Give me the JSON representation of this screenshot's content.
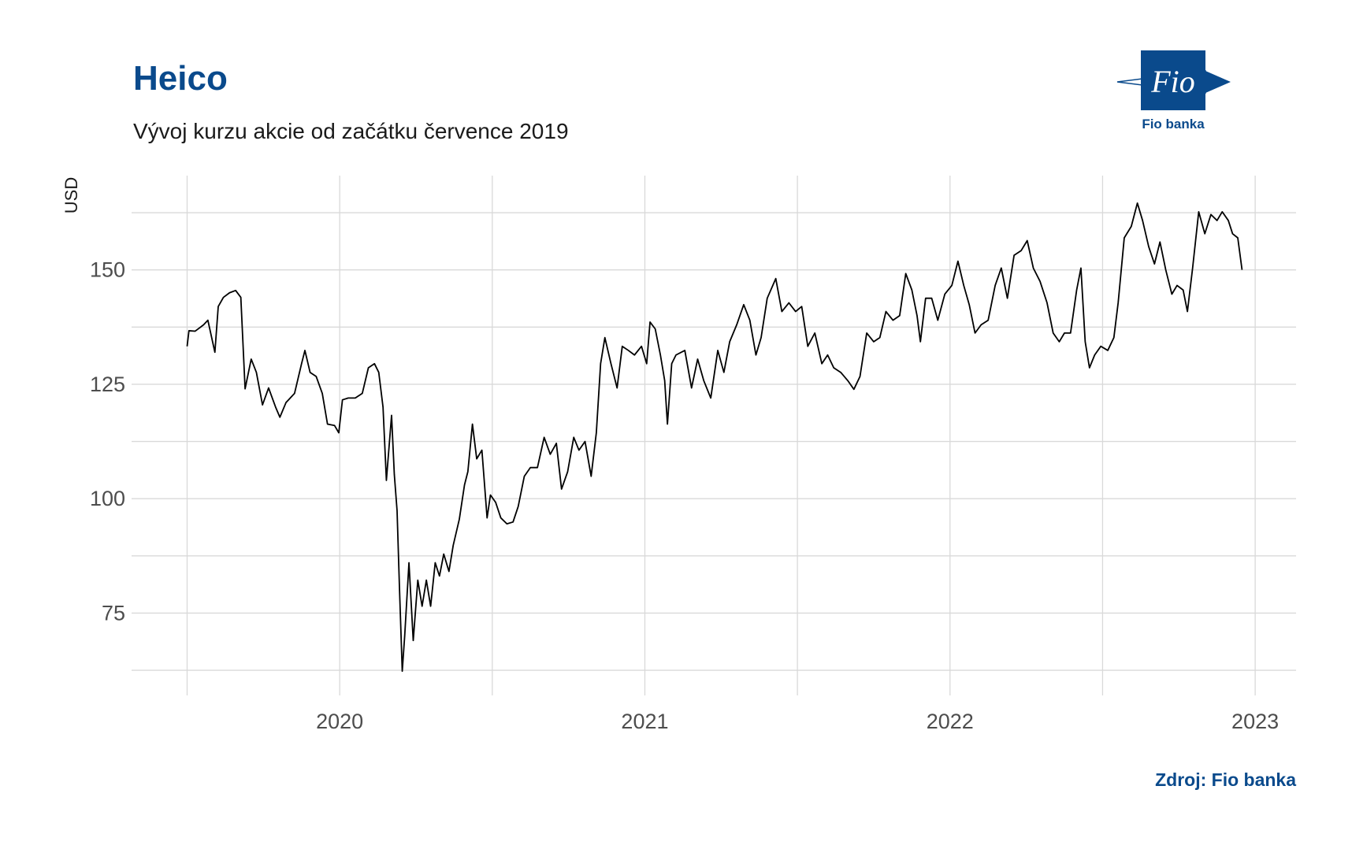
{
  "chart_data": {
    "type": "line",
    "title": "Heico",
    "subtitle": "Vývoj kurzu akcie od začátku července 2019",
    "y_label": "USD",
    "source": "Zdroj: Fio banka",
    "logo_text": "Fio",
    "logo_caption": "Fio banka",
    "color": "#000000",
    "grid": true,
    "xlim": [
      2019.318,
      2023.134
    ],
    "ylim": [
      57,
      170.6
    ],
    "xticks": [
      2020,
      2021,
      2022,
      2023
    ],
    "yticks": [
      75,
      100,
      125,
      150
    ],
    "xminor": [
      2019.5,
      2020.5,
      2021.5,
      2022.5
    ],
    "yminor": [
      62.5,
      87.5,
      112.5,
      137.5,
      162.5
    ],
    "x": [
      2019.5,
      2019.506,
      2019.526,
      2019.554,
      2019.568,
      2019.591,
      2019.602,
      2019.619,
      2019.639,
      2019.659,
      2019.676,
      2019.69,
      2019.71,
      2019.727,
      2019.747,
      2019.767,
      2019.79,
      2019.804,
      2019.824,
      2019.852,
      2019.875,
      2019.886,
      2019.903,
      2019.923,
      2019.943,
      2019.96,
      2019.983,
      2019.997,
      2020.009,
      2020.028,
      2020.051,
      2020.074,
      2020.094,
      2020.114,
      2020.128,
      2020.142,
      2020.153,
      2020.17,
      2020.179,
      2020.188,
      2020.196,
      2020.205,
      2020.213,
      2020.227,
      2020.241,
      2020.256,
      2020.27,
      2020.284,
      2020.298,
      2020.313,
      2020.327,
      2020.341,
      2020.358,
      2020.372,
      2020.392,
      2020.409,
      2020.42,
      2020.435,
      2020.449,
      2020.466,
      2020.483,
      2020.494,
      2020.511,
      2020.528,
      2020.548,
      2020.568,
      2020.585,
      2020.605,
      2020.625,
      2020.648,
      2020.67,
      2020.69,
      2020.71,
      2020.727,
      2020.747,
      2020.767,
      2020.784,
      2020.804,
      2020.824,
      2020.841,
      2020.855,
      2020.869,
      2020.889,
      2020.909,
      2020.926,
      2020.946,
      2020.966,
      2020.989,
      2021.006,
      2021.017,
      2021.034,
      2021.051,
      2021.065,
      2021.074,
      2021.088,
      2021.102,
      2021.131,
      2021.153,
      2021.173,
      2021.193,
      2021.216,
      2021.239,
      2021.259,
      2021.278,
      2021.301,
      2021.324,
      2021.344,
      2021.364,
      2021.381,
      2021.401,
      2021.429,
      2021.449,
      2021.472,
      2021.494,
      2021.514,
      2021.534,
      2021.557,
      2021.58,
      2021.599,
      2021.619,
      2021.642,
      2021.665,
      2021.685,
      2021.705,
      2021.727,
      2021.75,
      2021.77,
      2021.79,
      2021.813,
      2021.835,
      2021.855,
      2021.875,
      2021.892,
      2021.903,
      2021.92,
      2021.94,
      2021.96,
      2021.983,
      2022.006,
      2022.026,
      2022.045,
      2022.063,
      2022.082,
      2022.102,
      2022.125,
      2022.148,
      2022.168,
      2022.188,
      2022.21,
      2022.233,
      2022.253,
      2022.273,
      2022.295,
      2022.318,
      2022.338,
      2022.358,
      2022.375,
      2022.395,
      2022.415,
      2022.429,
      2022.443,
      2022.457,
      2022.474,
      2022.494,
      2022.517,
      2022.537,
      2022.551,
      2022.571,
      2022.594,
      2022.614,
      2022.631,
      2022.651,
      2022.67,
      2022.688,
      2022.707,
      2022.727,
      2022.744,
      2022.764,
      2022.778,
      2022.795,
      2022.815,
      2022.835,
      2022.855,
      2022.875,
      2022.892,
      2022.912,
      2022.926,
      2022.943,
      2022.957
    ],
    "values": [
      133.3,
      136.7,
      136.6,
      138,
      139,
      132,
      142,
      144,
      145,
      145.5,
      144,
      124,
      130.5,
      127.6,
      120.5,
      124.2,
      120,
      117.8,
      121,
      123,
      129.5,
      132.4,
      127.6,
      126.7,
      123,
      116.3,
      116,
      114.4,
      121.6,
      122,
      122,
      123,
      128.6,
      129.5,
      127.6,
      120,
      104,
      118.2,
      105.3,
      97.4,
      80.3,
      62.3,
      70,
      86,
      69,
      82.2,
      76.5,
      82.2,
      76.5,
      86,
      83.1,
      87.9,
      84.1,
      89.8,
      95.5,
      103,
      105.9,
      116.3,
      108.7,
      110.6,
      95.8,
      100.8,
      99.2,
      95.8,
      94.5,
      94.9,
      98.3,
      104.9,
      106.8,
      106.8,
      113.4,
      109.7,
      112.1,
      102.1,
      105.9,
      113.4,
      110.6,
      112.5,
      104.9,
      114.4,
      129.5,
      135.2,
      129.5,
      124.2,
      133.3,
      132.4,
      131.4,
      133.3,
      129.5,
      138.6,
      137.1,
      131.4,
      125.8,
      116.3,
      129.5,
      131.4,
      132.4,
      124.2,
      130.5,
      125.8,
      122,
      132.4,
      127.6,
      134.3,
      138,
      142.4,
      139,
      131.4,
      135.2,
      143.8,
      148.1,
      140.9,
      142.8,
      140.9,
      142,
      133.3,
      136.2,
      129.5,
      131.4,
      128.6,
      127.6,
      125.8,
      123.9,
      126.7,
      136.2,
      134.3,
      135.2,
      140.9,
      139,
      140,
      149.2,
      145.6,
      140,
      134.3,
      143.8,
      143.8,
      139,
      144.7,
      146.6,
      151.9,
      146.6,
      142.4,
      136.2,
      138,
      139,
      146.6,
      150.4,
      143.8,
      153.2,
      154.2,
      156.4,
      150.4,
      147.5,
      142.8,
      136.2,
      134.3,
      136.2,
      136.2,
      145.6,
      150.4,
      134.3,
      128.6,
      131.4,
      133.3,
      132.4,
      135.2,
      142.8,
      157,
      159.5,
      164.6,
      160.8,
      155.1,
      151.3,
      156.1,
      150,
      144.7,
      146.6,
      145.6,
      140.9,
      150.4,
      162.7,
      157.9,
      162.1,
      160.8,
      162.7,
      160.8,
      157.9,
      157,
      150
    ]
  }
}
